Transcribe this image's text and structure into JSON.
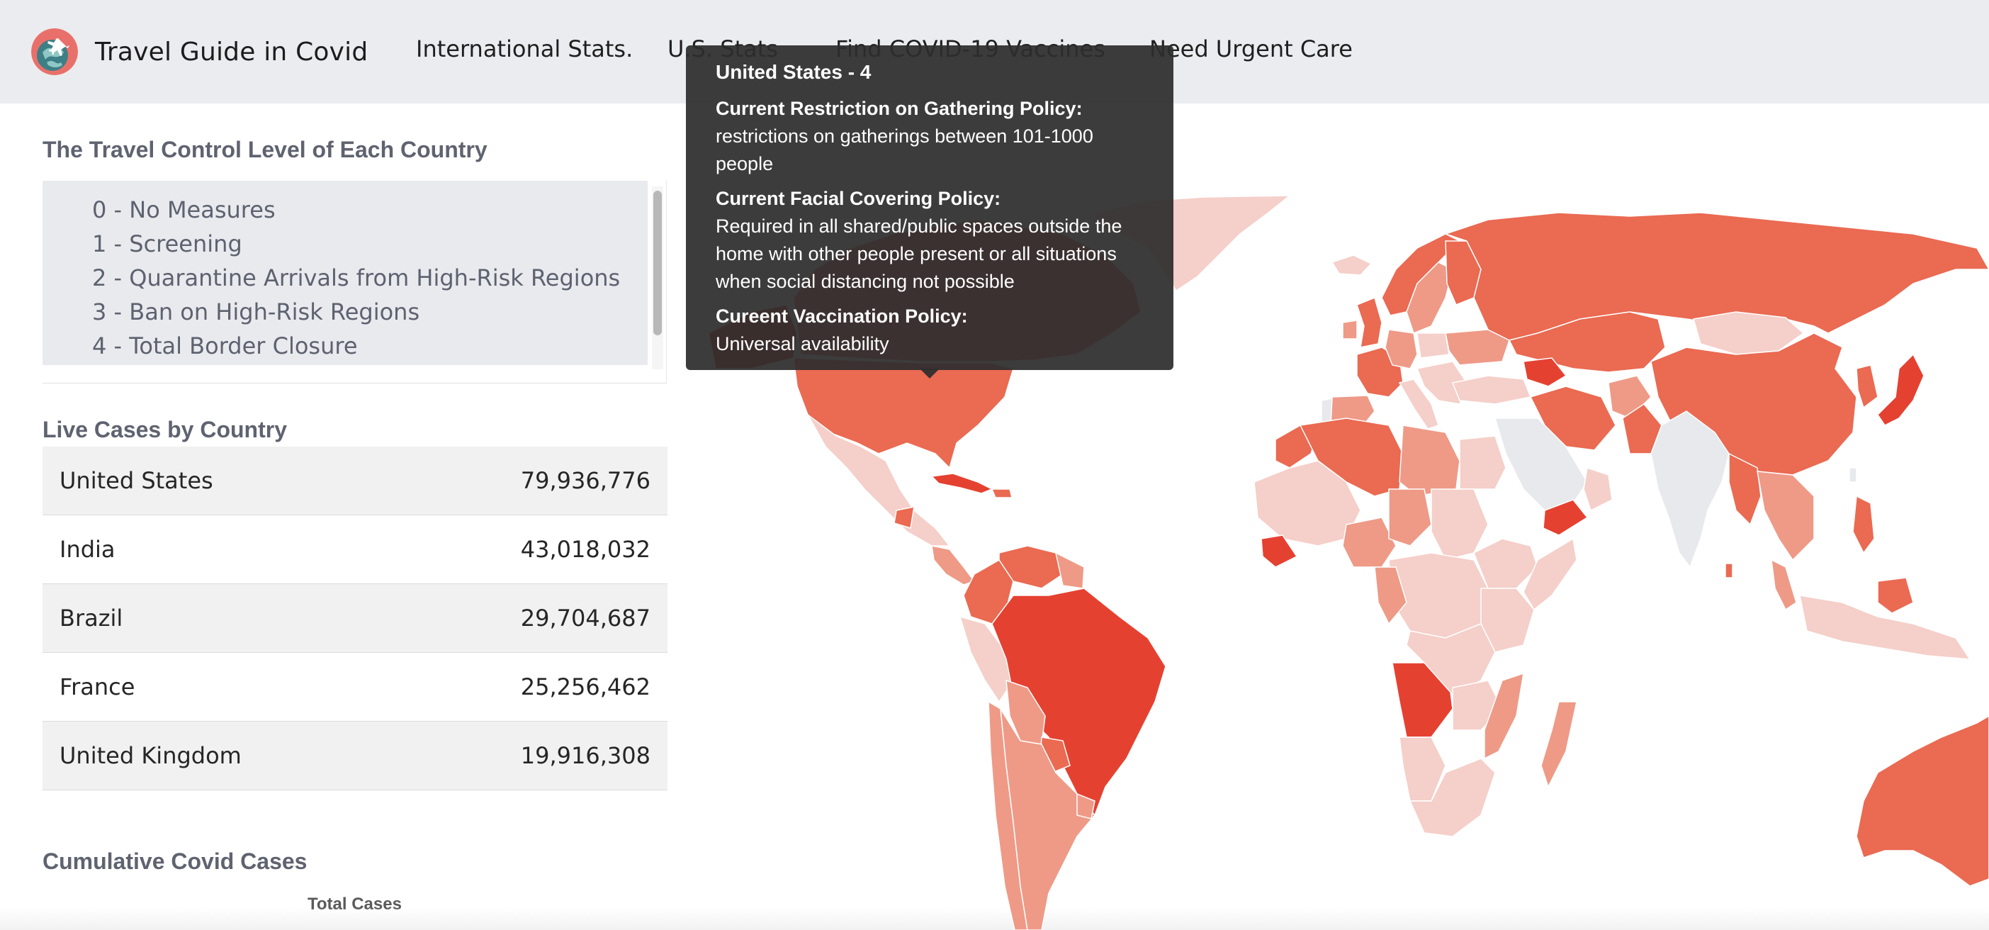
{
  "navbar": {
    "brand": "Travel Guide in Covid",
    "links": [
      "International Stats.",
      "U.S. Stats",
      "Find COVID-19 Vaccines",
      "Need Urgent Care"
    ]
  },
  "travel_control": {
    "title": "The Travel Control Level of Each Country",
    "levels": [
      "0 - No Measures",
      "1 - Screening",
      "2 - Quarantine Arrivals from High-Risk Regions",
      "3 - Ban on High-Risk Regions",
      "4 - Total Border Closure"
    ]
  },
  "live_cases": {
    "title": "Live Cases by Country",
    "rows": [
      {
        "country": "United States",
        "cases": "79,936,776"
      },
      {
        "country": "India",
        "cases": "43,018,032"
      },
      {
        "country": "Brazil",
        "cases": "29,704,687"
      },
      {
        "country": "France",
        "cases": "25,256,462"
      },
      {
        "country": "United Kingdom",
        "cases": "19,916,308"
      }
    ]
  },
  "cumulative": {
    "title": "Cumulative Covid Cases",
    "subtitle": "Total Cases"
  },
  "tooltip": {
    "title": "United States - 4",
    "gathering_label": "Current Restriction on Gathering Policy:",
    "gathering_value": "restrictions on gatherings between 101-1000 people",
    "facial_label": "Current Facial Covering Policy:",
    "facial_value": "Required in all shared/public spaces outside the home with other people present or all situations when social distancing not possible",
    "vaccination_label": "Cureent Vaccination Policy:",
    "vaccination_value": "Universal availability"
  },
  "map": {
    "level_colors": {
      "0": "#e8e9ec",
      "1": "#f5cfc9",
      "2": "#ee9a87",
      "3": "#ea6a52",
      "4": "#e54131"
    }
  }
}
